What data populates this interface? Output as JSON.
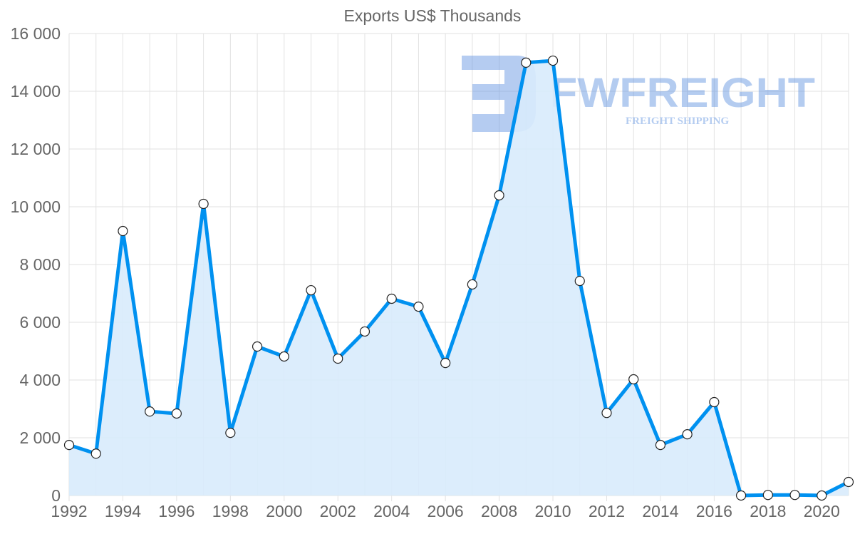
{
  "chart_data": {
    "type": "line",
    "title": "Exports US$ Thousands",
    "xlabel": "",
    "ylabel": "",
    "x": [
      1992,
      1993,
      1994,
      1995,
      1996,
      1997,
      1998,
      1999,
      2000,
      2001,
      2002,
      2003,
      2004,
      2005,
      2006,
      2007,
      2008,
      2009,
      2010,
      2011,
      2012,
      2013,
      2014,
      2015,
      2016,
      2017,
      2018,
      2019,
      2020,
      2021
    ],
    "series": [
      {
        "name": "Exports US$ Thousands",
        "values": [
          1750,
          1450,
          9160,
          2910,
          2840,
          10100,
          2170,
          5160,
          4815,
          7110,
          4740,
          5680,
          6815,
          6540,
          4590,
          7310,
          10395,
          14990,
          15060,
          7430,
          2860,
          4025,
          1750,
          2120,
          3235,
          0,
          20,
          20,
          0,
          470
        ]
      }
    ],
    "ylim": [
      0,
      16000
    ],
    "xlim": [
      1992,
      2021
    ],
    "y_ticks": [
      0,
      2000,
      4000,
      6000,
      8000,
      10000,
      12000,
      14000,
      16000
    ],
    "y_tick_labels": [
      "0",
      "2 000",
      "4 000",
      "6 000",
      "8 000",
      "10 000",
      "12 000",
      "14 000",
      "16 000"
    ],
    "x_ticks": [
      1992,
      1994,
      1996,
      1998,
      2000,
      2002,
      2004,
      2006,
      2008,
      2010,
      2012,
      2014,
      2016,
      2018,
      2020
    ],
    "grid": true,
    "colors": {
      "line": "#0091f0",
      "fill": "#d8ebfc",
      "grid": "#e2e2e2",
      "text": "#666666"
    }
  },
  "watermark": {
    "brand": "FWFREIGHT",
    "tagline": "FREIGHT SHIPPING"
  }
}
